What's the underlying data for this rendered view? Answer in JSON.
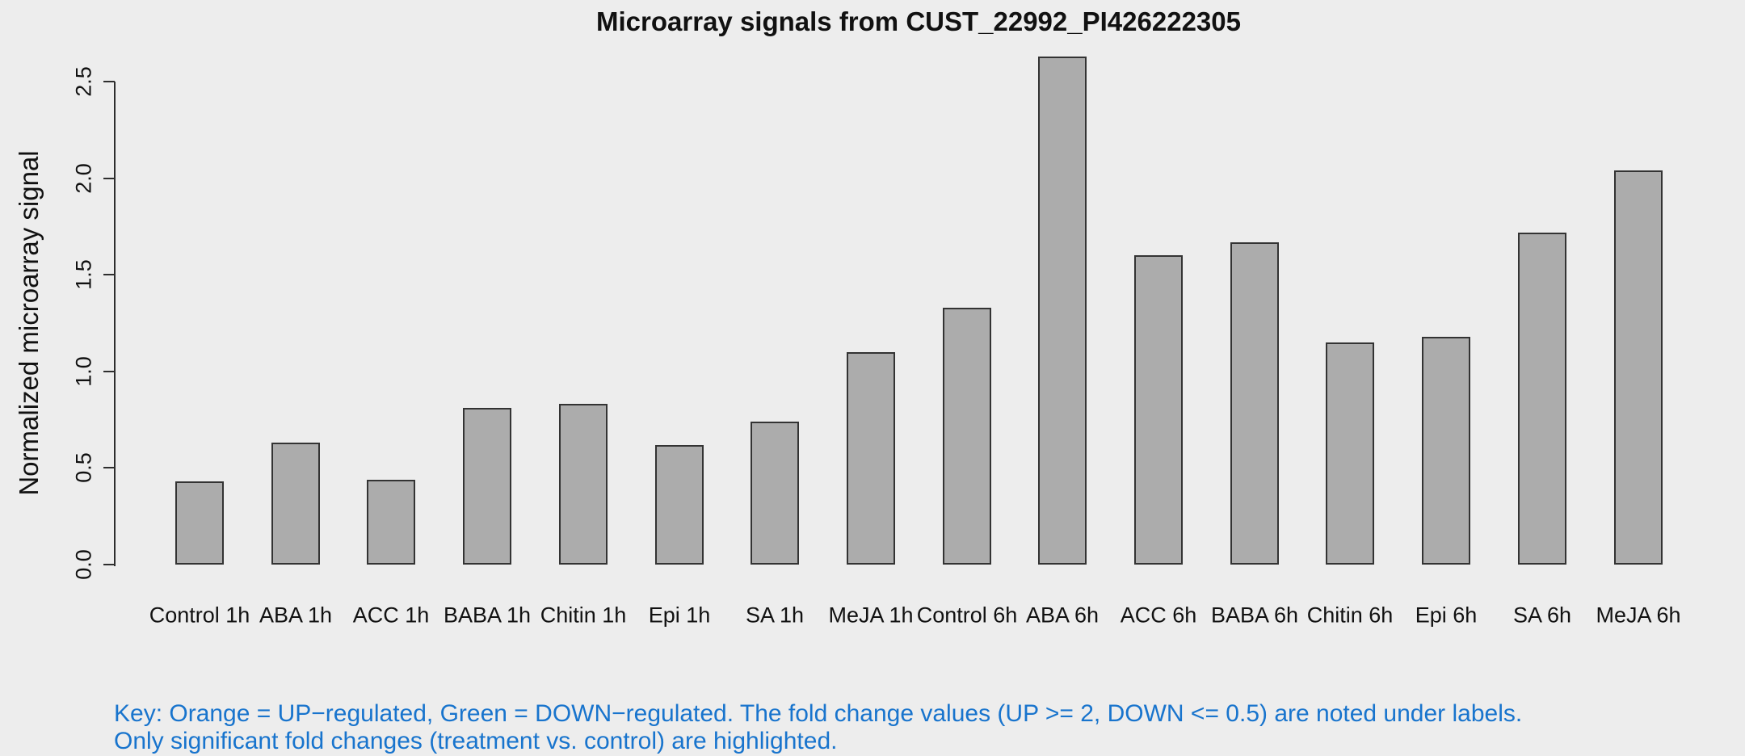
{
  "chart_data": {
    "type": "bar",
    "title": "Microarray signals from CUST_22992_PI426222305",
    "xlabel": "",
    "ylabel": "Normalized microarray signal",
    "categories": [
      "Control 1h",
      "ABA 1h",
      "ACC 1h",
      "BABA 1h",
      "Chitin 1h",
      "Epi 1h",
      "SA 1h",
      "MeJA 1h",
      "Control 6h",
      "ABA 6h",
      "ACC 6h",
      "BABA 6h",
      "Chitin 6h",
      "Epi 6h",
      "SA 6h",
      "MeJA 6h"
    ],
    "values": [
      0.43,
      0.63,
      0.44,
      0.81,
      0.83,
      0.62,
      0.74,
      1.1,
      1.33,
      2.63,
      1.6,
      1.67,
      1.15,
      1.18,
      1.72,
      2.04
    ],
    "ylim": [
      0,
      2.63
    ],
    "yticks": [
      0,
      0.5,
      1.0,
      1.5,
      2.0,
      2.5
    ],
    "ytick_labels": [
      "0.0",
      "0.5",
      "1.0",
      "1.5",
      "2.0",
      "2.5"
    ],
    "grid": false,
    "legend": "none",
    "colors": {
      "background": "#EDEDED",
      "bar_fill": "#ACACAC",
      "bar_border": "#333333",
      "axis": "#2e2e2e",
      "text": "#111111"
    }
  },
  "footer": {
    "line1": "Key: Orange = UP−regulated, Green = DOWN−regulated. The fold change values (UP >= 2, DOWN <= 0.5) are noted under labels.",
    "line2": "Only significant fold changes (treatment vs. control) are highlighted.",
    "color": "#1874CD"
  }
}
